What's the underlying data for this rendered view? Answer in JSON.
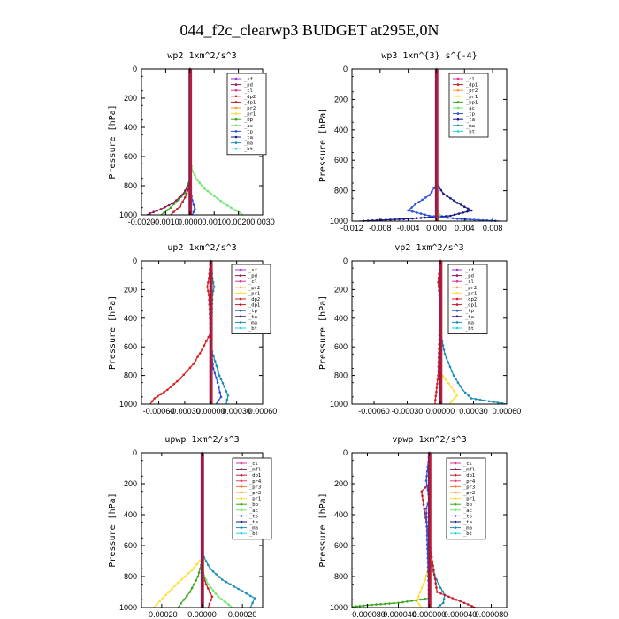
{
  "figure": {
    "title": "044_f2c_clearwp3  BUDGET at295E,0N"
  },
  "colors": {
    "_sf": "#a335d6",
    "_pd": "#8e1b5a",
    "_cl": "#e0349a",
    "_dp2": "#d62020",
    "_dp1": "#c0202a",
    "_pr2": "#ff9933",
    "_pr1": "#ffdd33",
    "_bp": "#3aa61f",
    "_bp1": "#3aa61f",
    "_ac": "#6ee66e",
    "_tp": "#2a52d6",
    "_ta": "#1a1a8a",
    "_ma": "#1d8fb0",
    "_bt": "#22d6e6",
    "_mfl": "#8e1b5a",
    "_pr4": "#e04070",
    "_pr3": "#ff7733"
  },
  "chart_data": [
    {
      "type": "line",
      "title": "wp2  1xm^2/s^3",
      "ylabel": "Pressure [hPa]",
      "xlim": [
        -0.002,
        0.003
      ],
      "ylim": [
        1000,
        0
      ],
      "xticks": [
        "-0.0020",
        "-0.0010",
        "0.0000",
        "0.0010",
        "0.0020",
        "0.0030"
      ],
      "yticks": [
        "0",
        "200",
        "400",
        "600",
        "800",
        "1000"
      ],
      "legend": [
        "_sf",
        "_pd",
        "_cl",
        "_dp2",
        "_dp1",
        "_pr2",
        "_pr1",
        "_bp",
        "_ac",
        "_tp",
        "_ta",
        "_ma",
        "_bt"
      ],
      "series": [
        {
          "name": "_ac",
          "x": [
            0,
            0,
            0.0001,
            0.0003,
            0.0006,
            0.001,
            0.0014,
            0.0017,
            0.0022
          ],
          "y": [
            0,
            600,
            700,
            760,
            820,
            870,
            920,
            950,
            1000
          ]
        },
        {
          "name": "_bp",
          "x": [
            0,
            0,
            -0.0002,
            -0.0005,
            -0.0008,
            -0.0012
          ],
          "y": [
            0,
            750,
            850,
            900,
            950,
            1000
          ]
        },
        {
          "name": "_pd",
          "x": [
            0,
            0,
            -0.0003,
            -0.0007,
            -0.0012,
            -0.0018
          ],
          "y": [
            0,
            780,
            860,
            920,
            960,
            1000
          ]
        },
        {
          "name": "_dp1",
          "x": [
            0,
            0,
            -0.0002,
            -0.0004,
            -0.0008
          ],
          "y": [
            0,
            800,
            880,
            940,
            1000
          ]
        },
        {
          "name": "_tp",
          "x": [
            0,
            0,
            0.0001,
            0.0002,
            0.0001
          ],
          "y": [
            0,
            820,
            900,
            960,
            1000
          ]
        }
      ]
    },
    {
      "type": "line",
      "title": "wp3  1xm^{3} s^{-4}",
      "ylabel": "Pressure [hPa]",
      "xlim": [
        -0.012,
        0.01
      ],
      "ylim": [
        1000,
        0
      ],
      "xticks": [
        "-0.012",
        "-0.008",
        "-0.004",
        "0.000",
        "0.004",
        "0.008"
      ],
      "yticks": [
        "0",
        "200",
        "400",
        "600",
        "800",
        "1000"
      ],
      "legend": [
        "_cl",
        "_dp1",
        "_pr2",
        "_pr1",
        "_bp1",
        "_ac",
        "_tp",
        "_ta",
        "_ma",
        "_bt"
      ],
      "series": [
        {
          "name": "_ta",
          "x": [
            0,
            0,
            0.001,
            0.003,
            0.005,
            0.002,
            -0.004,
            -0.011
          ],
          "y": [
            0,
            750,
            820,
            880,
            930,
            965,
            985,
            1000
          ]
        },
        {
          "name": "_tp",
          "x": [
            0,
            0,
            -0.001,
            -0.003,
            -0.004,
            -0.001,
            0.003,
            0.009
          ],
          "y": [
            0,
            760,
            830,
            890,
            930,
            965,
            985,
            1000
          ]
        },
        {
          "name": "_ac",
          "x": [
            0,
            0,
            0,
            0.0005,
            0.0002
          ],
          "y": [
            0,
            800,
            900,
            960,
            1000
          ]
        }
      ]
    },
    {
      "type": "line",
      "title": "up2  1xm^2/s^3",
      "ylabel": "Pressure [hPa]",
      "xlim": [
        -0.0008,
        0.0006
      ],
      "ylim": [
        1000,
        0
      ],
      "xticks": [
        "-0.00060",
        "-0.00030",
        "0.00000",
        "0.00030",
        "0.00060"
      ],
      "yticks": [
        "0",
        "200",
        "400",
        "600",
        "800",
        "1000"
      ],
      "legend": [
        "_sf",
        "_pd",
        "_cl",
        "_pr2",
        "_pr1",
        "_dp2",
        "_dp1",
        "_tp",
        "_ta",
        "_ma",
        "_bt"
      ],
      "series": [
        {
          "name": "_dp2",
          "x": [
            0,
            -2e-05,
            -4e-05,
            -2e-05,
            0,
            -0.0001,
            -0.0002,
            -0.00035,
            -0.0005,
            -0.00065,
            -0.0007
          ],
          "y": [
            0,
            120,
            180,
            240,
            500,
            620,
            720,
            820,
            900,
            960,
            1000
          ]
        },
        {
          "name": "_ma",
          "x": [
            0,
            2e-05,
            4e-05,
            2e-05,
            0,
            5e-05,
            0.0001,
            0.00016,
            0.0002,
            0.00018
          ],
          "y": [
            0,
            120,
            180,
            240,
            600,
            700,
            800,
            880,
            940,
            1000
          ]
        },
        {
          "name": "_tp",
          "x": [
            0,
            0,
            3e-05,
            8e-05,
            0.00012,
            6e-05
          ],
          "y": [
            0,
            600,
            750,
            850,
            950,
            1000
          ]
        }
      ]
    },
    {
      "type": "line",
      "title": "vp2  1xm^2/s^3",
      "ylabel": "Pressure [hPa]",
      "xlim": [
        -0.0008,
        0.0006
      ],
      "ylim": [
        1000,
        0
      ],
      "xticks": [
        "-0.00060",
        "-0.00030",
        "0.00000",
        "0.00030",
        "0.00060"
      ],
      "yticks": [
        "0",
        "200",
        "400",
        "600",
        "800",
        "1000"
      ],
      "legend": [
        "_sf",
        "_pd",
        "_cl",
        "_pr2",
        "_pr1",
        "_dp2",
        "_dp1",
        "_tp",
        "_ta",
        "_ma",
        "_bt"
      ],
      "series": [
        {
          "name": "_ma",
          "x": [
            0,
            0,
            4e-05,
            0.00012,
            0.0002,
            0.00028,
            0.0006
          ],
          "y": [
            0,
            500,
            650,
            800,
            900,
            960,
            1000
          ]
        },
        {
          "name": "_pr1",
          "x": [
            0,
            0,
            0.0001,
            0.00015,
            8e-05
          ],
          "y": [
            0,
            780,
            880,
            940,
            1000
          ]
        },
        {
          "name": "_dp2",
          "x": [
            0,
            -2e-05,
            0,
            -2e-05,
            -5e-05
          ],
          "y": [
            0,
            150,
            300,
            800,
            1000
          ]
        }
      ]
    },
    {
      "type": "line",
      "title": "upwp  1xm^2/s^3",
      "ylabel": "Pressure [hPa]",
      "xlim": [
        -0.0003,
        0.0003
      ],
      "ylim": [
        1000,
        0
      ],
      "xticks": [
        "-0.00020",
        "0.00000",
        "0.00020"
      ],
      "yticks": [
        "0",
        "200",
        "400",
        "600",
        "800",
        "1000"
      ],
      "legend": [
        "_cl",
        "_mfl",
        "_dp1",
        "_pr4",
        "_pr3",
        "_pr2",
        "_pr1",
        "_bp",
        "_ac",
        "_tp",
        "_ta",
        "_ma",
        "_bt"
      ],
      "series": [
        {
          "name": "_ma",
          "x": [
            0,
            0,
            4e-05,
            0.0001,
            0.00018,
            0.00026,
            0.00024
          ],
          "y": [
            0,
            650,
            750,
            820,
            880,
            940,
            1000
          ]
        },
        {
          "name": "_pr1",
          "x": [
            0,
            0,
            -5e-05,
            -0.00012,
            -0.00018,
            -0.00024
          ],
          "y": [
            0,
            680,
            760,
            840,
            920,
            1000
          ]
        },
        {
          "name": "_bp",
          "x": [
            0,
            0,
            -2e-05,
            -6e-05,
            -0.00012
          ],
          "y": [
            0,
            700,
            800,
            900,
            1000
          ]
        },
        {
          "name": "_dp1",
          "x": [
            0,
            0,
            2e-05,
            5e-05,
            3e-05
          ],
          "y": [
            0,
            750,
            850,
            930,
            1000
          ]
        },
        {
          "name": "_ac",
          "x": [
            0,
            0,
            3e-05,
            8e-05,
            0.00015
          ],
          "y": [
            0,
            760,
            850,
            930,
            1000
          ]
        }
      ]
    },
    {
      "type": "line",
      "title": "vpwp  1xm^2/s^3",
      "ylabel": "Pressure [hPa]",
      "xlim": [
        -0.0001,
        0.0001
      ],
      "ylim": [
        1000,
        0
      ],
      "xticks": [
        "-0.000080",
        "-0.000040",
        "0.000000",
        "0.000040",
        "0.000080"
      ],
      "yticks": [
        "0",
        "200",
        "400",
        "600",
        "800",
        "1000"
      ],
      "legend": [
        "_cl",
        "_mfl",
        "_dp1",
        "_pr4",
        "_pr3",
        "_pr2",
        "_pr1",
        "_bp",
        "_ac",
        "_tp",
        "_ta",
        "_ma",
        "_bt"
      ],
      "series": [
        {
          "name": "_ma",
          "x": [
            0,
            0,
            4e-06,
            1.2e-05,
            2e-05,
            1.8e-05,
            1e-05
          ],
          "y": [
            0,
            650,
            760,
            850,
            920,
            970,
            1000
          ]
        },
        {
          "name": "_pr1",
          "x": [
            0,
            0,
            -5e-06,
            -1.2e-05,
            -1.6e-05,
            -1e-05
          ],
          "y": [
            0,
            720,
            820,
            900,
            960,
            1000
          ]
        },
        {
          "name": "_bp",
          "x": [
            0,
            0,
            -4e-05,
            -8e-05,
            -0.0001
          ],
          "y": [
            0,
            940,
            970,
            985,
            995
          ]
        },
        {
          "name": "_dp1",
          "x": [
            0,
            0,
            -1e-05,
            1e-05,
            4e-05,
            6e-05
          ],
          "y": [
            0,
            200,
            250,
            900,
            960,
            1000
          ]
        },
        {
          "name": "_tp",
          "x": [
            0,
            -4e-06,
            0,
            -4e-06,
            0
          ],
          "y": [
            0,
            180,
            300,
            360,
            1000
          ]
        }
      ]
    }
  ]
}
